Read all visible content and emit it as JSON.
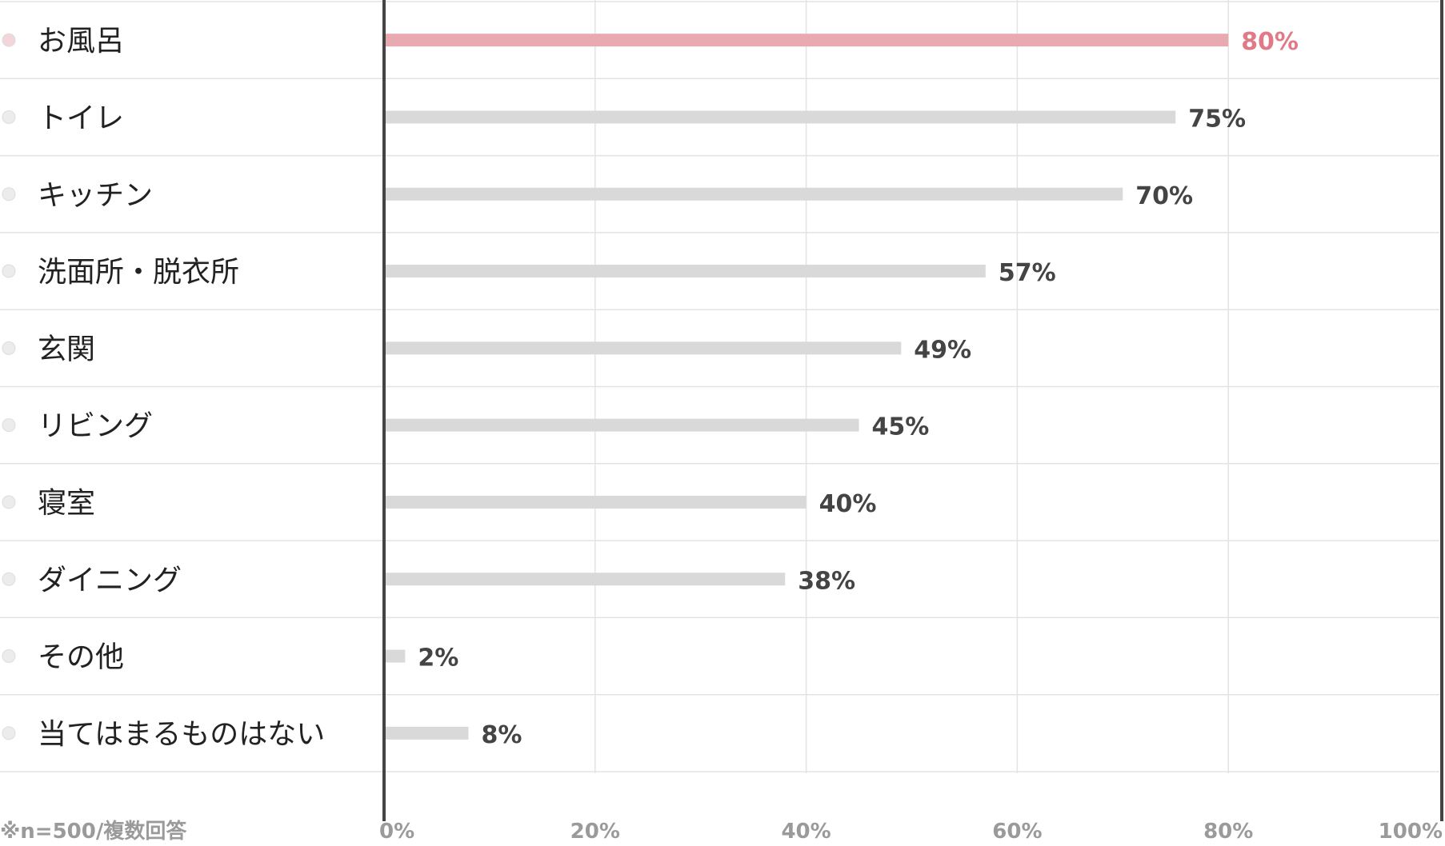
{
  "chart_data": {
    "type": "bar",
    "orientation": "horizontal",
    "categories": [
      "お風呂",
      "トイレ",
      "キッチン",
      "洗面所・脱衣所",
      "玄関",
      "リビング",
      "寝室",
      "ダイニング",
      "その他",
      "当てはまるものはない"
    ],
    "values": [
      80,
      75,
      70,
      57,
      49,
      45,
      40,
      38,
      2,
      8
    ],
    "value_labels": [
      "80%",
      "75%",
      "70%",
      "57%",
      "49%",
      "45%",
      "40%",
      "38%",
      "2%",
      "8%"
    ],
    "x_ticks": [
      "0%",
      "20%",
      "40%",
      "60%",
      "80%",
      "100%"
    ],
    "xlim": [
      0,
      100
    ],
    "note": "※n=500/複数回答",
    "title": "",
    "xlabel": "",
    "ylabel": "",
    "grid": true,
    "colors": {
      "highlight_bar": "#e8a9b0",
      "highlight_text": "#e07a86",
      "bar": "#d9d9d9",
      "value_text": "#444444",
      "category_text": "#222222",
      "tick_text": "#9a9a9a",
      "axis": "#444444",
      "grid": "#e3e3e3",
      "row_divider": "#e3e3e3",
      "bullet_highlight": "#f3d6d9",
      "bullet": "#ececec"
    }
  }
}
